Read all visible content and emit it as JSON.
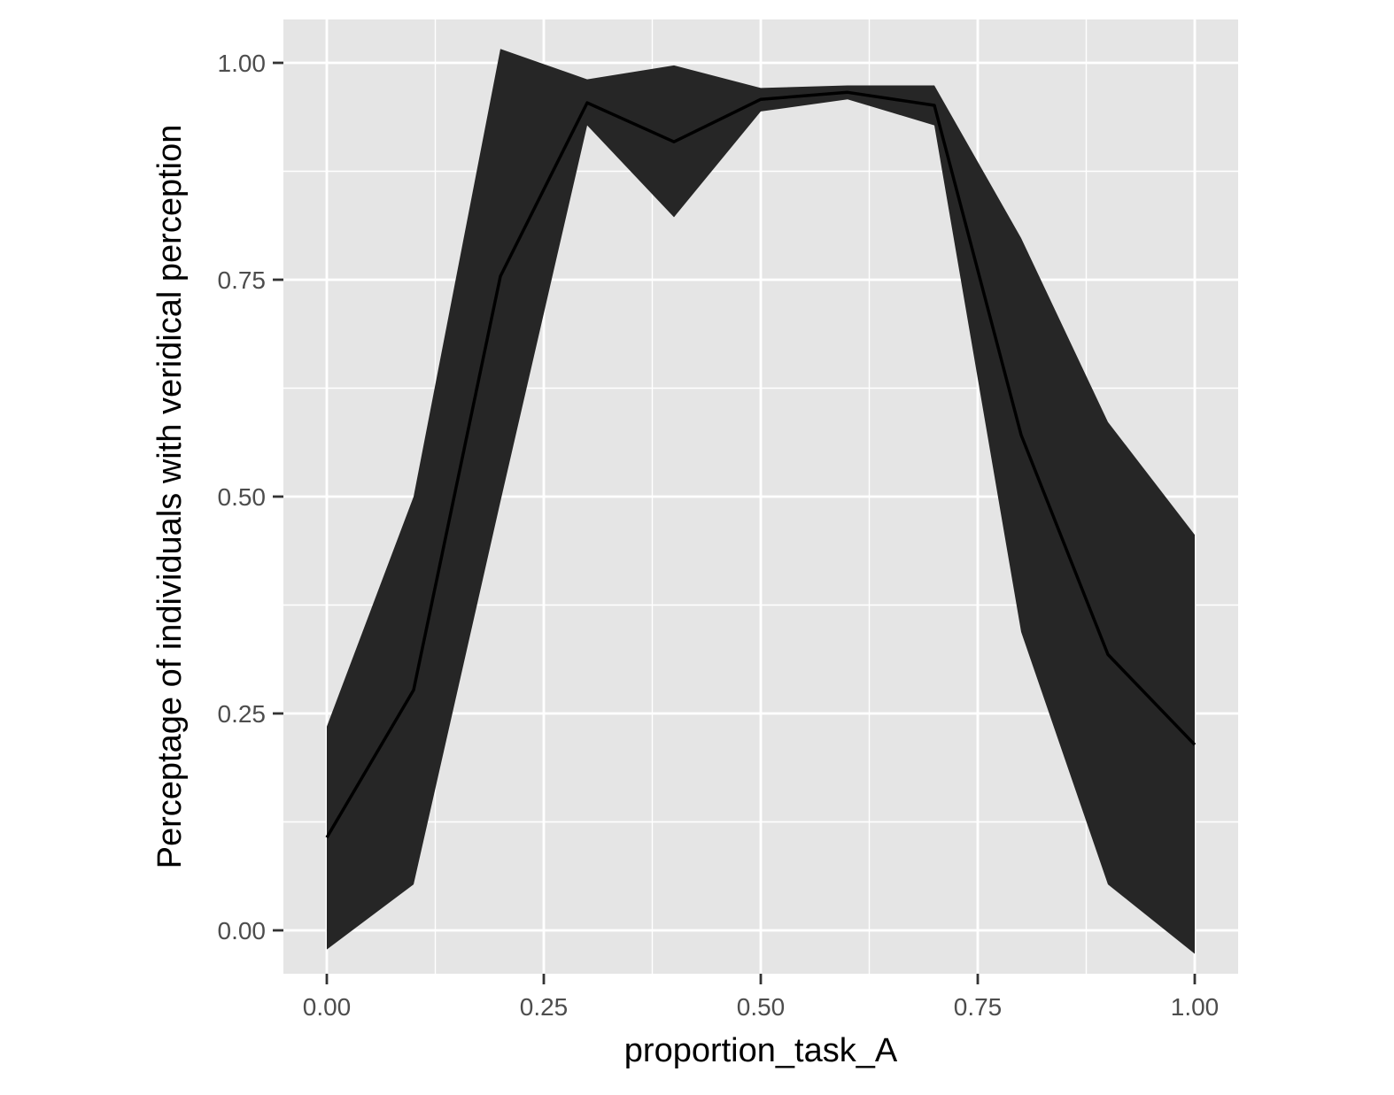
{
  "chart_data": {
    "type": "area",
    "title": "",
    "xlabel": "proportion_task_A",
    "ylabel": "Perceptage of individuals with veridical perception",
    "xlim": [
      -0.05,
      1.05
    ],
    "ylim": [
      -0.05,
      1.05
    ],
    "x_ticks": [
      0.0,
      0.25,
      0.5,
      0.75,
      1.0
    ],
    "x_tick_labels": [
      "0.00",
      "0.25",
      "0.50",
      "0.75",
      "1.00"
    ],
    "y_ticks": [
      0.0,
      0.25,
      0.5,
      0.75,
      1.0
    ],
    "y_tick_labels": [
      "0.00",
      "0.25",
      "0.50",
      "0.75",
      "1.00"
    ],
    "grid": true,
    "legend": "none",
    "x": [
      0.0,
      0.1,
      0.2,
      0.3,
      0.4,
      0.5,
      0.6,
      0.7,
      0.8,
      0.9,
      1.0
    ],
    "series": [
      {
        "values": [
          0.107,
          0.277,
          0.754,
          0.954,
          0.909,
          0.958,
          0.966,
          0.951,
          0.571,
          0.318,
          0.214
        ],
        "lower": [
          -0.022,
          0.053,
          0.494,
          0.928,
          0.822,
          0.944,
          0.958,
          0.928,
          0.344,
          0.053,
          -0.027
        ],
        "upper": [
          0.235,
          0.5,
          1.016,
          0.981,
          0.997,
          0.971,
          0.974,
          0.974,
          0.798,
          0.586,
          0.456
        ]
      }
    ],
    "colors": {
      "panel_background": "#e5e5e5",
      "grid": "#ffffff",
      "ribbon": "#262626",
      "line": "#000000"
    }
  }
}
